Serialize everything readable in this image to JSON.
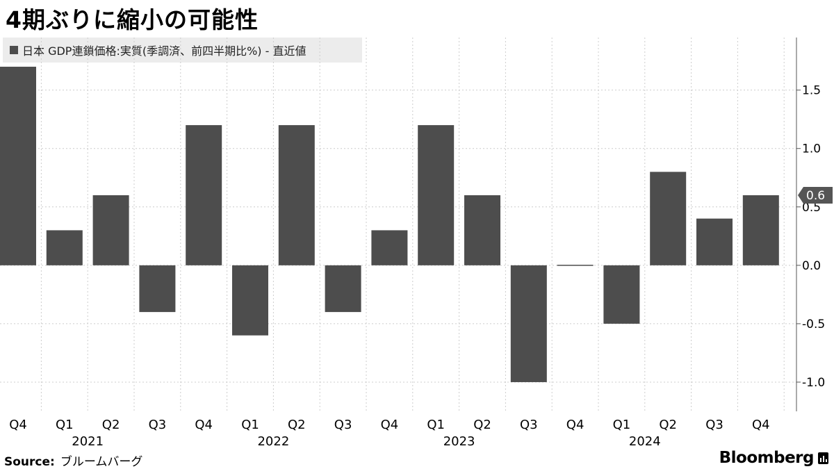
{
  "title": "4期ぶりに縮小の可能性",
  "legend": {
    "label": "日本 GDP連鎖価格:実質(季調済、前四半期比%) - 直近値"
  },
  "source": {
    "label": "Source:",
    "text": "ブルームバーグ"
  },
  "brand": "Bloomberg",
  "colors": {
    "bar": "#4d4d4d",
    "grid": "#cccccc",
    "axis": "#555555",
    "badge": "#555555"
  },
  "chart_data": {
    "type": "bar",
    "categories": [
      "Q4",
      "Q1",
      "Q2",
      "Q3",
      "Q4",
      "Q1",
      "Q2",
      "Q3",
      "Q4",
      "Q1",
      "Q2",
      "Q3",
      "Q4",
      "Q1",
      "Q2",
      "Q3",
      "Q4"
    ],
    "year_labels": [
      {
        "index": 1.5,
        "label": "2021"
      },
      {
        "index": 5.5,
        "label": "2022"
      },
      {
        "index": 9.5,
        "label": "2023"
      },
      {
        "index": 13.5,
        "label": "2024"
      }
    ],
    "values": [
      1.7,
      0.3,
      0.6,
      -0.4,
      1.2,
      -0.6,
      1.2,
      -0.4,
      0.3,
      1.2,
      0.6,
      -1.0,
      0.0,
      -0.5,
      0.8,
      0.4,
      0.6
    ],
    "ylim": [
      -1.25,
      1.95
    ],
    "yticks": [
      1.5,
      1.0,
      0.5,
      0.0,
      -0.5,
      -1.0
    ],
    "ytick_labels": [
      "1.5",
      "1.0",
      "0.5",
      "0.0",
      "-0.5",
      "-1.0"
    ],
    "latest_value_label": "0.6",
    "grid": true,
    "legend_position": "top-left",
    "axis_position": "right"
  }
}
